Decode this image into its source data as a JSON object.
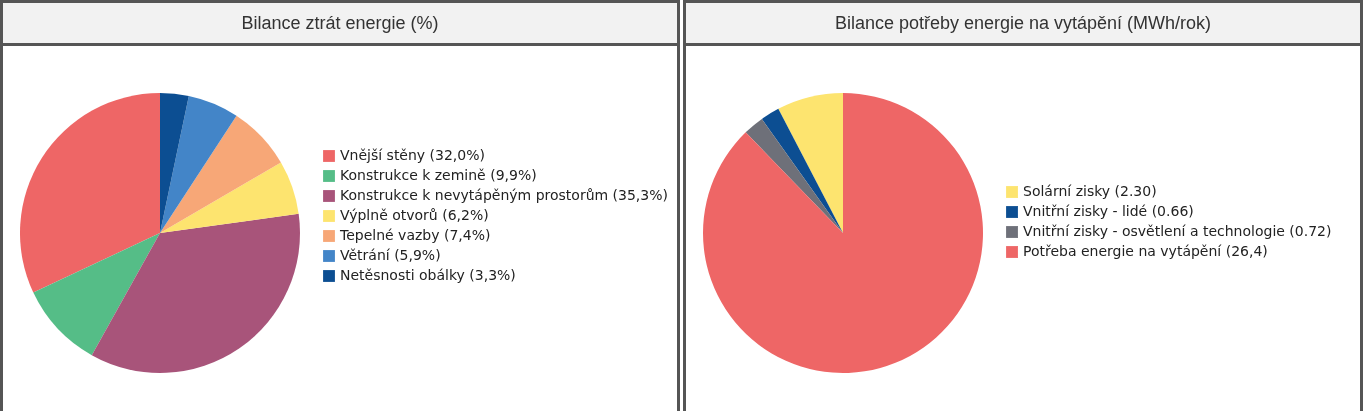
{
  "chart_data": [
    {
      "type": "pie",
      "title": "Bilance ztrát energie (%)",
      "legend": "right",
      "categories": [
        "Vnější stěny (32,0%)",
        "Konstrukce k zemině (9,9%)",
        "Konstrukce k nevytápěným prostorům (35,3%)",
        "Výplně otvorů (6,2%)",
        "Tepelné vazby (7,4%)",
        "Větrání (5,9%)",
        "Netěsnosti obálky (3,3%)"
      ],
      "values": [
        32.0,
        9.9,
        35.3,
        6.2,
        7.4,
        5.9,
        3.3
      ],
      "colors": [
        "#ee6666",
        "#55bd87",
        "#a8547a",
        "#fde46f",
        "#f7a777",
        "#4385c8",
        "#0c4e92"
      ]
    },
    {
      "type": "pie",
      "title": "Bilance potřeby energie na vytápění (MWh/rok)",
      "legend": "right",
      "categories": [
        "Solární zisky (2.30)",
        "Vnitřní zisky - lidé (0.66)",
        "Vnitřní zisky - osvětlení a technologie (0.72)",
        "Potřeba energie na vytápění (26,4)"
      ],
      "values": [
        2.3,
        0.66,
        0.72,
        26.4
      ],
      "colors": [
        "#fde46f",
        "#0c4e92",
        "#6e7079",
        "#ee6666"
      ]
    }
  ]
}
